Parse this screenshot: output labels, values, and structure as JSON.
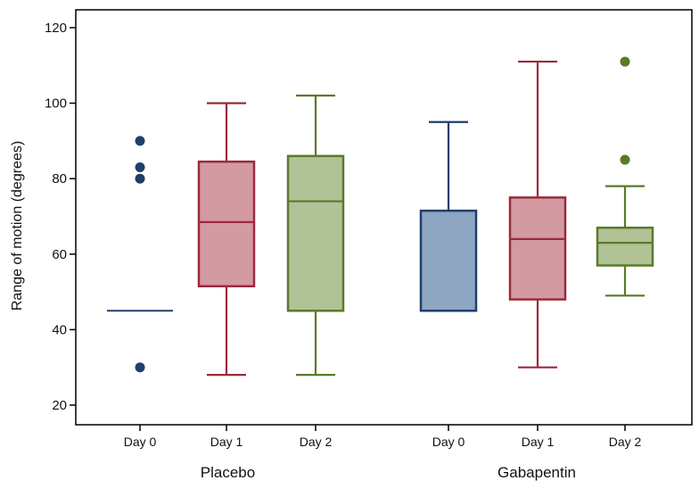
{
  "chart_data": {
    "type": "boxplot",
    "title": "",
    "xlabel": "",
    "ylabel": "Range of motion (degrees)",
    "ylim": [
      15,
      122
    ],
    "yticks": [
      20,
      40,
      60,
      80,
      100,
      120
    ],
    "grid": false,
    "legend": "none",
    "groups": [
      {
        "name": "Placebo",
        "boxes": [
          {
            "label": "Day 0",
            "color": "#1f3f6b",
            "fill": "#1f3f6b",
            "q1": 45,
            "median": 45,
            "q3": 45,
            "whisker_low": 45,
            "whisker_high": 45,
            "outliers": [
              30,
              80,
              83,
              90
            ]
          },
          {
            "label": "Day 1",
            "color": "#9b2a3d",
            "fill": "#d49aa2",
            "q1": 51.5,
            "median": 68.5,
            "q3": 84.5,
            "whisker_low": 28,
            "whisker_high": 100,
            "outliers": []
          },
          {
            "label": "Day 2",
            "color": "#5a7a2a",
            "fill": "#b1c296",
            "q1": 45,
            "median": 74,
            "q3": 86,
            "whisker_low": 28,
            "whisker_high": 102,
            "outliers": []
          }
        ]
      },
      {
        "name": "Gabapentin",
        "boxes": [
          {
            "label": "Day 0",
            "color": "#1f3f6b",
            "fill": "#8ea6c1",
            "q1": 45,
            "median": 45,
            "q3": 71.5,
            "whisker_low": 45,
            "whisker_high": 95,
            "outliers": []
          },
          {
            "label": "Day 1",
            "color": "#9b2a3d",
            "fill": "#d49aa2",
            "q1": 48,
            "median": 64,
            "q3": 75,
            "whisker_low": 30,
            "whisker_high": 111,
            "outliers": []
          },
          {
            "label": "Day 2",
            "color": "#5a7a2a",
            "fill": "#b1c296",
            "q1": 57,
            "median": 63,
            "q3": 67,
            "whisker_low": 49,
            "whisker_high": 78,
            "outliers": [
              85,
              111
            ]
          }
        ]
      }
    ]
  }
}
